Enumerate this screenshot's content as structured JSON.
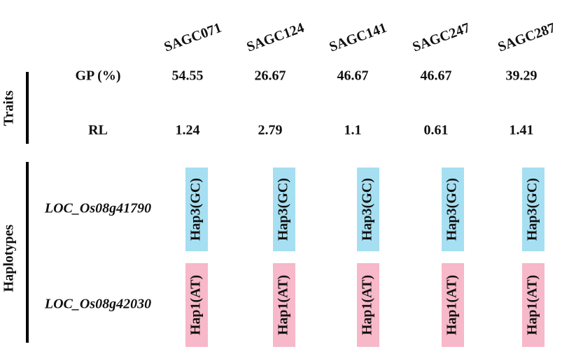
{
  "columns": [
    "SAGC071",
    "SAGC124",
    "SAGC141",
    "SAGC247",
    "SAGC287"
  ],
  "groups": [
    {
      "label": "Traits",
      "rows": [
        {
          "label": "GP (%)",
          "cells": [
            "54.55",
            "26.67",
            "46.67",
            "46.67",
            "39.29"
          ]
        },
        {
          "label": "RL",
          "cells": [
            "1.24",
            "2.79",
            "1.1",
            "0.61",
            "1.41"
          ]
        }
      ]
    },
    {
      "label": "Haplotypes",
      "rows": [
        {
          "label": "LOC_Os08g41790",
          "color": "#a6dff2",
          "cells": [
            "Hap3(GC)",
            "Hap3(GC)",
            "Hap3(GC)",
            "Hap3(GC)",
            "Hap3(GC)"
          ]
        },
        {
          "label": "LOC_Os08g42030",
          "color": "#f7b8c9",
          "cells": [
            "Hap1(AT)",
            "Hap1(AT)",
            "Hap1(AT)",
            "Hap1(AT)",
            "Hap1(AT)"
          ]
        }
      ]
    }
  ]
}
